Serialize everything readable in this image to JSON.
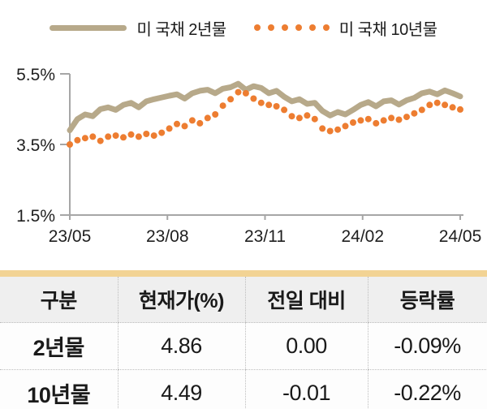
{
  "colors": {
    "series_2y": "#b7a98a",
    "series_10y": "#ed7d31",
    "axis": "#a6a6a6",
    "table_accent_bar": "#f2d394",
    "table_header_bg": "#efefef",
    "dotted_border": "#bdbdbd",
    "text": "#1a1a1a"
  },
  "legend": {
    "items": [
      {
        "label": "미 국채 2년물",
        "style": "solid",
        "color": "#b7a98a"
      },
      {
        "label": "미 국채 10년물",
        "style": "dotted",
        "color": "#ed7d31"
      }
    ]
  },
  "chart_data": {
    "type": "line",
    "title": "",
    "xlabel": "",
    "ylabel": "",
    "ylim": [
      1.5,
      5.5
    ],
    "grid": false,
    "legend_position": "top",
    "axis_color": "#a6a6a6",
    "y_ticks": [
      "5.5%",
      "3.5%",
      "1.5%"
    ],
    "y_tick_values": [
      5.5,
      3.5,
      1.5
    ],
    "x_ticks": [
      "23/05",
      "23/08",
      "23/11",
      "24/02",
      "24/05"
    ],
    "series": [
      {
        "name": "미 국채 2년물",
        "style": "solid",
        "color": "#b7a98a",
        "values": [
          3.9,
          4.22,
          4.35,
          4.3,
          4.5,
          4.55,
          4.48,
          4.62,
          4.68,
          4.55,
          4.72,
          4.78,
          4.83,
          4.88,
          4.92,
          4.8,
          4.95,
          5.02,
          5.05,
          4.95,
          5.08,
          5.12,
          5.22,
          5.05,
          5.15,
          5.1,
          4.95,
          5.02,
          4.85,
          4.72,
          4.78,
          4.65,
          4.68,
          4.45,
          4.32,
          4.42,
          4.35,
          4.48,
          4.62,
          4.7,
          4.58,
          4.72,
          4.75,
          4.63,
          4.75,
          4.82,
          4.95,
          5.0,
          4.92,
          5.03,
          4.95,
          4.86
        ]
      },
      {
        "name": "미 국채 10년물",
        "style": "dotted",
        "color": "#ed7d31",
        "values": [
          3.5,
          3.62,
          3.68,
          3.72,
          3.6,
          3.72,
          3.75,
          3.7,
          3.78,
          3.72,
          3.8,
          3.75,
          3.83,
          3.95,
          4.08,
          4.02,
          4.18,
          4.1,
          4.25,
          4.35,
          4.6,
          4.78,
          4.98,
          4.95,
          4.8,
          4.68,
          4.62,
          4.58,
          4.48,
          4.3,
          4.25,
          4.32,
          4.22,
          3.95,
          3.88,
          3.92,
          4.02,
          4.12,
          4.18,
          4.22,
          4.1,
          4.18,
          4.25,
          4.2,
          4.28,
          4.38,
          4.48,
          4.62,
          4.68,
          4.62,
          4.55,
          4.49
        ]
      }
    ]
  },
  "table": {
    "headers": [
      "구분",
      "현재가(%)",
      "전일 대비",
      "등락률"
    ],
    "rows": [
      [
        "2년물",
        "4.86",
        "0.00",
        "-0.09%"
      ],
      [
        "10년물",
        "4.49",
        "-0.01",
        "-0.22%"
      ]
    ]
  }
}
